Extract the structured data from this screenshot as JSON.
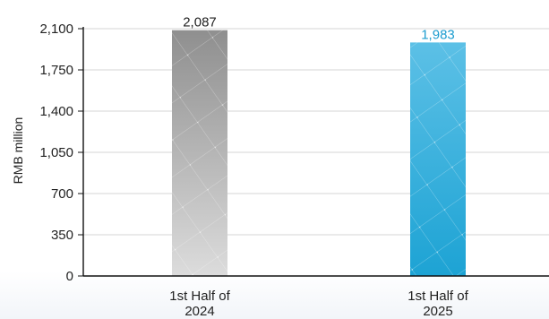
{
  "chart_data": {
    "type": "bar",
    "title": "",
    "xlabel": "",
    "ylabel": "RMB million",
    "ylim": [
      0,
      2100
    ],
    "yticks": [
      0,
      350,
      700,
      1050,
      1400,
      1750,
      2100
    ],
    "ytick_labels": [
      "0",
      "350",
      "700",
      "1,050",
      "1,400",
      "1,750",
      "2,100"
    ],
    "grid": true,
    "categories": [
      [
        "1st Half of",
        "2024"
      ],
      [
        "1st Half of",
        "2025"
      ]
    ],
    "values": [
      2087,
      1983
    ],
    "data_labels": [
      "2,087",
      "1,983"
    ],
    "colors": {
      "bar_2024_top": "#8f8f8f",
      "bar_2024_bottom": "#dcdcdc",
      "bar_2025_top": "#5cc0e6",
      "bar_2025_bottom": "#1da3d4",
      "label_2024": "#222222",
      "label_2025": "#1c9ccf",
      "gridline": "#d6d6d6",
      "axis": "#111111"
    }
  }
}
